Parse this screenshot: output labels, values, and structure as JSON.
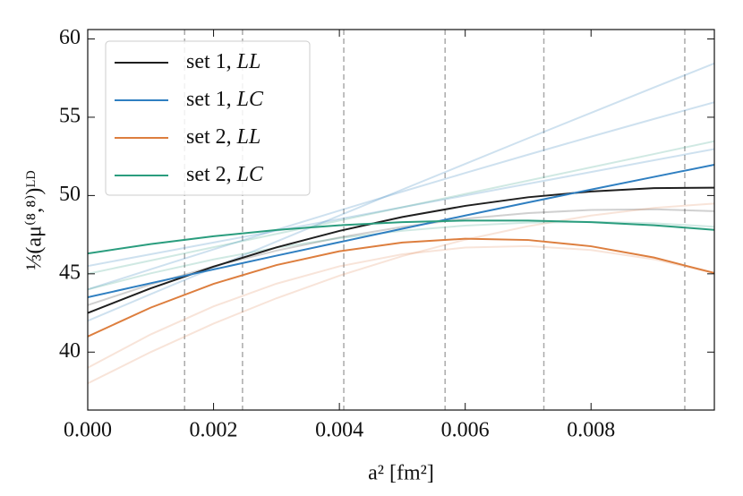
{
  "chart_data": {
    "type": "line",
    "xlabel": "a² [fm²]",
    "ylabel": "⅓(aμ⁽⁸,⁸⁾)ᴸᴰ",
    "x": [
      0,
      0.001,
      0.002,
      0.003,
      0.004,
      0.005,
      0.006,
      0.007,
      0.008,
      0.009,
      0.00996
    ],
    "xlim": [
      0,
      0.00996
    ],
    "ylim": [
      36.3,
      60.6
    ],
    "xticks": [
      {
        "value": 0,
        "label": "0.000"
      },
      {
        "value": 0.002,
        "label": "0.002"
      },
      {
        "value": 0.004,
        "label": "0.004"
      },
      {
        "value": 0.006,
        "label": "0.006"
      },
      {
        "value": 0.008,
        "label": "0.008"
      }
    ],
    "yticks": [
      40,
      45,
      50,
      55,
      60
    ],
    "vlines": [
      0.00154,
      0.00246,
      0.00407,
      0.00568,
      0.00725,
      0.00949
    ],
    "legend": "upper left",
    "series": [
      {
        "color": "rgba(31,119,180,0.22)",
        "values": [
          42,
          43.7,
          45.38,
          47.06,
          48.72,
          50.38,
          52.02,
          53.66,
          55.28,
          56.9,
          58.44
        ]
      },
      {
        "color": "rgba(31,119,180,0.22)",
        "values": [
          45.5,
          46.25,
          47.0,
          47.75,
          48.5,
          49.25,
          50.0,
          50.75,
          51.5,
          52.25,
          52.97
        ]
      },
      {
        "color": "rgba(31,119,180,0.22)",
        "values": [
          44,
          45.29,
          46.56,
          47.81,
          49.04,
          50.25,
          51.44,
          52.61,
          53.76,
          54.89,
          55.96
        ]
      },
      {
        "color": "rgba(40,40,40,0.22)",
        "values": [
          43,
          44.32,
          45.48,
          46.48,
          47.32,
          48.0,
          48.52,
          48.88,
          49.08,
          49.12,
          49.0
        ]
      },
      {
        "color": "rgba(221,132,82,0.22)",
        "values": [
          39,
          41.13,
          42.92,
          44.37,
          45.48,
          46.25,
          46.68,
          46.77,
          46.52,
          45.93,
          45.04
        ]
      },
      {
        "color": "rgba(221,132,82,0.22)",
        "values": [
          38,
          40.0,
          41.82,
          43.44,
          44.88,
          46.13,
          47.18,
          48.04,
          48.72,
          49.21,
          49.49
        ]
      },
      {
        "color": "rgba(42,157,126,0.22)",
        "values": [
          45,
          45.85,
          46.7,
          47.55,
          48.4,
          49.25,
          50.1,
          50.95,
          51.8,
          52.65,
          53.47
        ]
      },
      {
        "color": "rgba(42,157,126,0.22)",
        "values": [
          44,
          45.03,
          45.92,
          46.67,
          47.28,
          47.75,
          48.08,
          48.27,
          48.32,
          48.23,
          48.01
        ]
      },
      {
        "name": "set 1, LL",
        "color": "#1f1f1f",
        "values": [
          42.5,
          44.07,
          45.46,
          46.69,
          47.74,
          48.63,
          49.34,
          49.89,
          50.26,
          50.47,
          50.5
        ]
      },
      {
        "name": "set 1, LC",
        "color": "#2f7fc1",
        "values": [
          43.5,
          44.4,
          45.28,
          46.16,
          47.02,
          47.88,
          48.72,
          49.56,
          50.38,
          51.19,
          51.97
        ]
      },
      {
        "name": "set 2, LL",
        "color": "#dd7e3e",
        "values": [
          41,
          42.84,
          44.36,
          45.56,
          46.44,
          47.0,
          47.24,
          47.16,
          46.76,
          46.04,
          45.05
        ]
      },
      {
        "name": "set 2, LC",
        "color": "#2a9d7e",
        "values": [
          46.3,
          46.9,
          47.4,
          47.8,
          48.1,
          48.3,
          48.4,
          48.4,
          48.3,
          48.1,
          47.81
        ]
      }
    ]
  }
}
